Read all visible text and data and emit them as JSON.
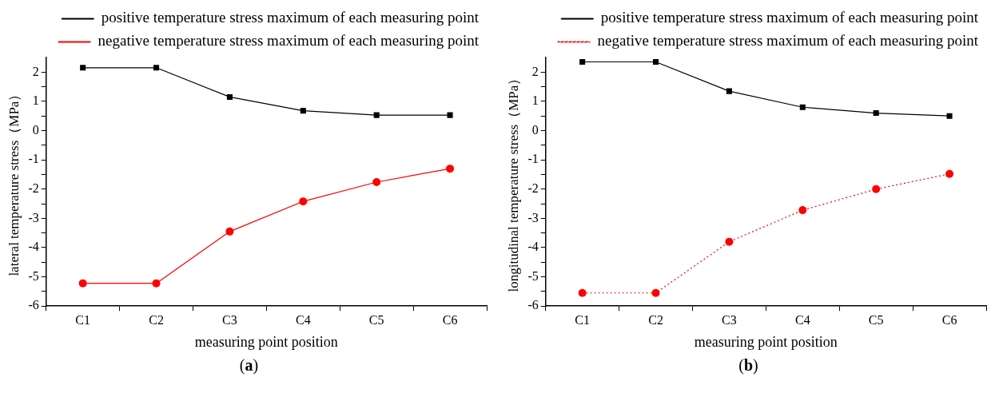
{
  "chart_data": [
    {
      "type": "line",
      "xlabel": "measuring point position",
      "ylabel": "lateral temperature stress（MPa）",
      "categories": [
        "C1",
        "C2",
        "C3",
        "C4",
        "C5",
        "C6"
      ],
      "series": [
        {
          "name": "positive temperature stress maximum of each measuring point",
          "color": "#000000",
          "marker": "square",
          "line_style": "solid",
          "values": [
            2.15,
            2.15,
            1.15,
            0.68,
            0.53,
            0.53
          ]
        },
        {
          "name": "negative temperature stress maximum of each measuring point",
          "color": "#ff0000",
          "marker": "circle",
          "line_style": "solid",
          "values": [
            -5.22,
            -5.22,
            -3.45,
            -2.42,
            -1.76,
            -1.3
          ]
        }
      ],
      "ylim": [
        -6,
        2.5
      ],
      "yticks": [
        -6,
        {
          "value": -5.5,
          "label": null
        },
        -5,
        {
          "value": -4.5,
          "label": null
        },
        -4,
        {
          "value": -3.5,
          "label": null
        },
        -3,
        {
          "value": -2.5,
          "label": null
        },
        -2,
        {
          "value": -1.5,
          "label": null
        },
        -1,
        {
          "value": -0.5,
          "label": null
        },
        0,
        {
          "value": 0.5,
          "label": null
        },
        1,
        {
          "value": 1.5,
          "label": null
        },
        2
      ],
      "grid": false,
      "legend": "top",
      "annotations": [
        "(a)"
      ]
    },
    {
      "type": "line",
      "xlabel": "measuring point position",
      "ylabel": "longitudinal temperature stress（MPa）",
      "categories": [
        "C1",
        "C2",
        "C3",
        "C4",
        "C5",
        "C6"
      ],
      "series": [
        {
          "name": "positive temperature stress maximum of each measuring point",
          "color": "#000000",
          "marker": "square",
          "line_style": "solid",
          "values": [
            2.35,
            2.35,
            1.35,
            0.8,
            0.6,
            0.5
          ]
        },
        {
          "name": "negative temperature stress maximum of each measuring point",
          "color": "#ff0000",
          "marker": "circle",
          "line_style": "dotted",
          "values": [
            -5.55,
            -5.55,
            -3.8,
            -2.72,
            -2.0,
            -1.48
          ]
        }
      ],
      "ylim": [
        -6,
        2.5
      ],
      "yticks": [
        -6,
        {
          "value": -5.5,
          "label": null
        },
        -5,
        {
          "value": -4.5,
          "label": null
        },
        -4,
        {
          "value": -3.5,
          "label": null
        },
        -3,
        {
          "value": -2.5,
          "label": null
        },
        -2,
        {
          "value": -1.5,
          "label": null
        },
        -1,
        {
          "value": -0.5,
          "label": null
        },
        0,
        {
          "value": 0.5,
          "label": null
        },
        1,
        {
          "value": 1.5,
          "label": null
        },
        2
      ],
      "grid": false,
      "legend": "top",
      "annotations": [
        "(b)"
      ]
    }
  ]
}
